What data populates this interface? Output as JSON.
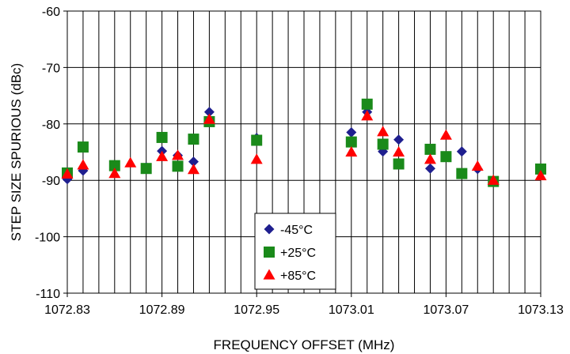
{
  "chart_data": {
    "type": "scatter",
    "title": "",
    "xlabel": "FREQUENCY OFFSET (MHz)",
    "ylabel": "STEP SIZE SPURIOUS (dBc)",
    "xlim": [
      1072.83,
      1073.13
    ],
    "ylim": [
      -110,
      -60
    ],
    "x_ticks": [
      1072.83,
      1072.89,
      1072.95,
      1073.01,
      1073.07,
      1073.13
    ],
    "x_tick_labels": [
      "1072.83",
      "1072.89",
      "1072.95",
      "1073.01",
      "1073.07",
      "1073.13"
    ],
    "y_ticks": [
      -110,
      -100,
      -90,
      -80,
      -70,
      -60
    ],
    "y_tick_labels": [
      "-110",
      "-100",
      "-90",
      "-80",
      "-70",
      "-60"
    ],
    "grid": true,
    "grid_x_step": 0.01,
    "grid_y_step": 10,
    "legend_position": "bottom-center",
    "series": [
      {
        "name": "-45°C",
        "marker": "diamond",
        "color": "#1f1f8f",
        "points": [
          [
            1072.83,
            -89.8
          ],
          [
            1072.84,
            -88.3
          ],
          [
            1072.88,
            -87.7
          ],
          [
            1072.89,
            -84.8
          ],
          [
            1072.9,
            -85.6
          ],
          [
            1072.91,
            -86.7
          ],
          [
            1072.92,
            -77.9
          ],
          [
            1072.95,
            -82.5
          ],
          [
            1073.01,
            -81.5
          ],
          [
            1073.02,
            -77.9
          ],
          [
            1073.03,
            -84.9
          ],
          [
            1073.04,
            -82.8
          ],
          [
            1073.06,
            -87.9
          ],
          [
            1073.08,
            -84.9
          ],
          [
            1073.09,
            -88.0
          ]
        ]
      },
      {
        "name": "+25°C",
        "marker": "square",
        "color": "#1a8a1a",
        "points": [
          [
            1072.83,
            -88.7
          ],
          [
            1072.84,
            -84.1
          ],
          [
            1072.86,
            -87.4
          ],
          [
            1072.88,
            -87.9
          ],
          [
            1072.89,
            -82.4
          ],
          [
            1072.9,
            -87.5
          ],
          [
            1072.91,
            -82.7
          ],
          [
            1072.92,
            -79.6
          ],
          [
            1072.95,
            -82.9
          ],
          [
            1073.01,
            -83.2
          ],
          [
            1073.02,
            -76.5
          ],
          [
            1073.03,
            -83.6
          ],
          [
            1073.04,
            -87.1
          ],
          [
            1073.06,
            -84.5
          ],
          [
            1073.07,
            -85.8
          ],
          [
            1073.08,
            -88.8
          ],
          [
            1073.1,
            -90.2
          ],
          [
            1073.13,
            -88.0
          ]
        ]
      },
      {
        "name": "+85°C",
        "marker": "triangle",
        "color": "#ff0000",
        "points": [
          [
            1072.83,
            -88.9
          ],
          [
            1072.84,
            -87.3
          ],
          [
            1072.86,
            -88.8
          ],
          [
            1072.87,
            -86.9
          ],
          [
            1072.89,
            -85.8
          ],
          [
            1072.9,
            -85.6
          ],
          [
            1072.91,
            -88.1
          ],
          [
            1072.92,
            -79.2
          ],
          [
            1072.95,
            -86.3
          ],
          [
            1073.01,
            -85.0
          ],
          [
            1073.02,
            -78.6
          ],
          [
            1073.03,
            -81.4
          ],
          [
            1073.04,
            -85.0
          ],
          [
            1073.06,
            -86.3
          ],
          [
            1073.07,
            -82.0
          ],
          [
            1073.09,
            -87.5
          ],
          [
            1073.1,
            -90.0
          ],
          [
            1073.13,
            -89.2
          ]
        ]
      }
    ]
  }
}
